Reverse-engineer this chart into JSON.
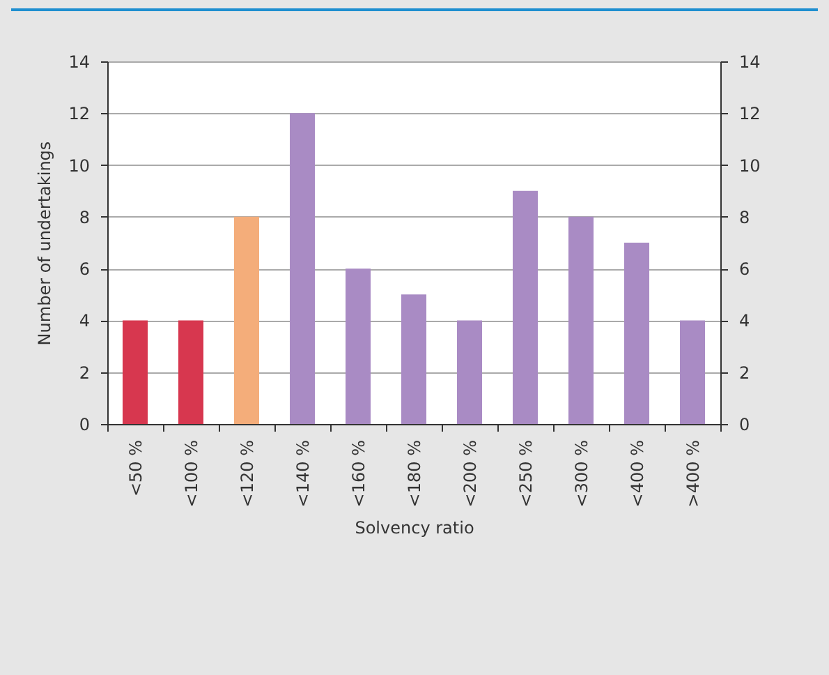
{
  "chart_data": {
    "type": "bar",
    "xlabel": "Solvency ratio",
    "ylabel": "Number of undertakings",
    "categories": [
      "<50 %",
      "<100 %",
      "<120 %",
      "<140 %",
      "<160 %",
      "<180 %",
      "<200 %",
      "<250 %",
      "<300 %",
      "<400 %",
      ">400 %"
    ],
    "values": [
      4,
      4,
      8,
      12,
      6,
      5,
      4,
      9,
      8,
      7,
      4
    ],
    "colors": [
      "#d7374f",
      "#d7374f",
      "#f4ad7a",
      "#a98bc4",
      "#a98bc4",
      "#a98bc4",
      "#a98bc4",
      "#a98bc4",
      "#a98bc4",
      "#a98bc4",
      "#a98bc4"
    ],
    "ylim": [
      0,
      14
    ],
    "yticks": [
      0,
      2,
      4,
      6,
      8,
      10,
      12,
      14
    ],
    "y2lim": [
      0,
      14
    ],
    "y2ticks": [
      0,
      2,
      4,
      6,
      8,
      10,
      12,
      14
    ],
    "grid": "y"
  }
}
